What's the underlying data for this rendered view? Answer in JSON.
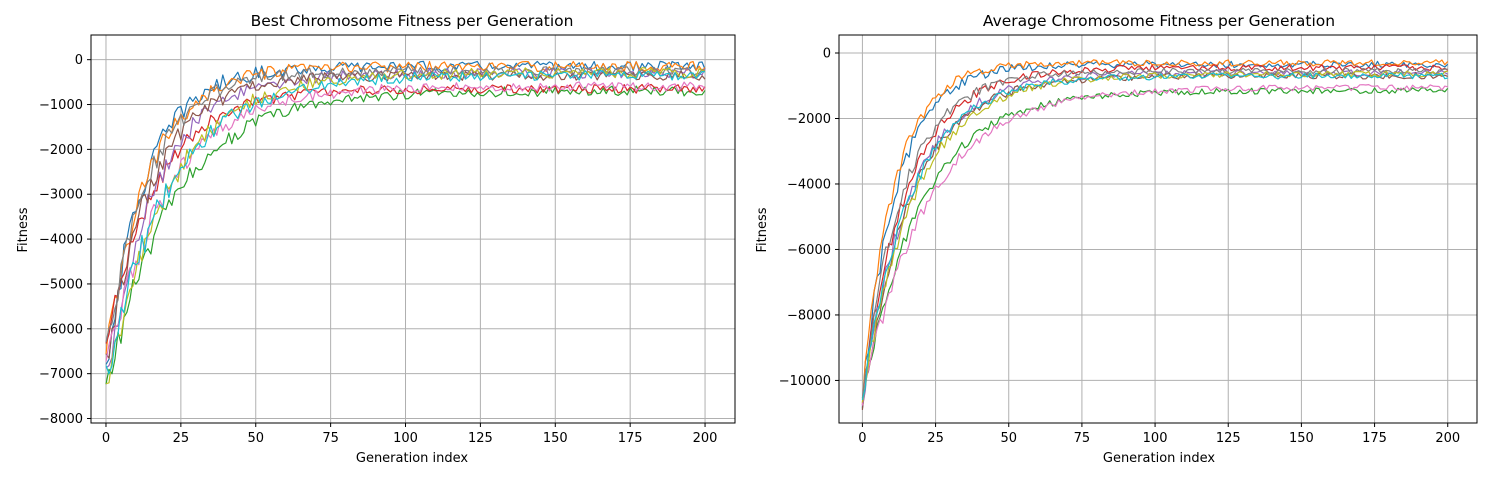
{
  "chart_data": [
    {
      "type": "line",
      "title": "Best Chromosome Fitness per Generation",
      "xlabel": "Generation index",
      "ylabel": "Fitness",
      "xlim": [
        -5,
        210
      ],
      "ylim": [
        -8100,
        550
      ],
      "grid": true,
      "x_ticks": [
        0,
        25,
        50,
        75,
        100,
        125,
        150,
        175,
        200
      ],
      "y_ticks": [
        0,
        -1000,
        -2000,
        -3000,
        -4000,
        -5000,
        -6000,
        -7000,
        -8000
      ],
      "x_tick_labels": [
        "0",
        "25",
        "50",
        "75",
        "100",
        "125",
        "150",
        "175",
        "200"
      ],
      "y_tick_labels": [
        "0",
        "−1000",
        "−2000",
        "−3000",
        "−4000",
        "−5000",
        "−6000",
        "−7000",
        "−8000"
      ],
      "generations": 201,
      "series": [
        {
          "color": "#1f77b4",
          "start": -6900,
          "plateau": -150,
          "rate": 0.075
        },
        {
          "color": "#ff7f0e",
          "start": -6700,
          "plateau": -150,
          "rate": 0.07
        },
        {
          "color": "#2ca02c",
          "start": -7400,
          "plateau": -700,
          "rate": 0.045
        },
        {
          "color": "#d62728",
          "start": -6500,
          "plateau": -650,
          "rate": 0.06
        },
        {
          "color": "#9467bd",
          "start": -7100,
          "plateau": -300,
          "rate": 0.06
        },
        {
          "color": "#8c564b",
          "start": -6800,
          "plateau": -350,
          "rate": 0.065
        },
        {
          "color": "#e377c2",
          "start": -7000,
          "plateau": -600,
          "rate": 0.05
        },
        {
          "color": "#7f7f7f",
          "start": -6600,
          "plateau": -250,
          "rate": 0.07
        },
        {
          "color": "#bcbd22",
          "start": -7600,
          "plateau": -300,
          "rate": 0.05
        },
        {
          "color": "#17becf",
          "start": -7200,
          "plateau": -350,
          "rate": 0.048
        }
      ]
    },
    {
      "type": "line",
      "title": "Average Chromosome Fitness per Generation",
      "xlabel": "Generation index",
      "ylabel": "Fitness",
      "xlim": [
        -8,
        210
      ],
      "ylim": [
        -11300,
        550
      ],
      "grid": true,
      "x_ticks": [
        0,
        25,
        50,
        75,
        100,
        125,
        150,
        175,
        200
      ],
      "y_ticks": [
        0,
        -2000,
        -4000,
        -6000,
        -8000,
        -10000
      ],
      "x_tick_labels": [
        "0",
        "25",
        "50",
        "75",
        "100",
        "125",
        "150",
        "175",
        "200"
      ],
      "y_tick_labels": [
        "0",
        "−2000",
        "−4000",
        "−6000",
        "−8000",
        "−10000"
      ],
      "generations": 201,
      "series": [
        {
          "color": "#1f77b4",
          "start": -10500,
          "plateau": -350,
          "rate": 0.085
        },
        {
          "color": "#ff7f0e",
          "start": -10400,
          "plateau": -300,
          "rate": 0.09
        },
        {
          "color": "#2ca02c",
          "start": -10600,
          "plateau": -1150,
          "rate": 0.05
        },
        {
          "color": "#d62728",
          "start": -10500,
          "plateau": -450,
          "rate": 0.065
        },
        {
          "color": "#9467bd",
          "start": -10600,
          "plateau": -600,
          "rate": 0.06
        },
        {
          "color": "#8c564b",
          "start": -10700,
          "plateau": -700,
          "rate": 0.06
        },
        {
          "color": "#e377c2",
          "start": -10600,
          "plateau": -1050,
          "rate": 0.045
        },
        {
          "color": "#7f7f7f",
          "start": -10400,
          "plateau": -550,
          "rate": 0.07
        },
        {
          "color": "#bcbd22",
          "start": -10550,
          "plateau": -650,
          "rate": 0.055
        },
        {
          "color": "#17becf",
          "start": -10500,
          "plateau": -700,
          "rate": 0.06
        }
      ]
    }
  ]
}
